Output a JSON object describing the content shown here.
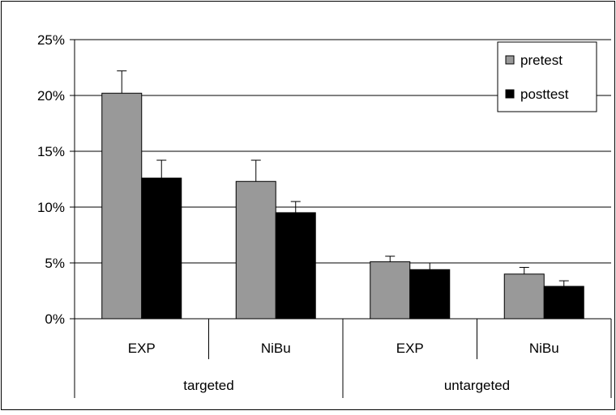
{
  "chart_data": {
    "type": "bar",
    "x_groups": [
      {
        "label": "targeted",
        "categories": [
          "EXP",
          "NiBu"
        ]
      },
      {
        "label": "untargeted",
        "categories": [
          "EXP",
          "NiBu"
        ]
      }
    ],
    "categories": [
      "EXP",
      "NiBu",
      "EXP",
      "NiBu"
    ],
    "series": [
      {
        "name": "pretest",
        "values": [
          20.2,
          12.3,
          5.1,
          4.0
        ],
        "errors": [
          2.0,
          1.9,
          0.5,
          0.6
        ],
        "color": "#999999"
      },
      {
        "name": "posttest",
        "values": [
          12.6,
          9.5,
          4.4,
          2.9
        ],
        "errors": [
          1.6,
          1.0,
          0.6,
          0.5
        ],
        "color": "#000000"
      }
    ],
    "y_ticks": [
      "0%",
      "5%",
      "10%",
      "15%",
      "20%",
      "25%"
    ],
    "ylim": [
      0,
      25
    ],
    "y_unit": "%",
    "grid": true,
    "legend_position": "top-right",
    "title": "",
    "xlabel": "",
    "ylabel": ""
  }
}
